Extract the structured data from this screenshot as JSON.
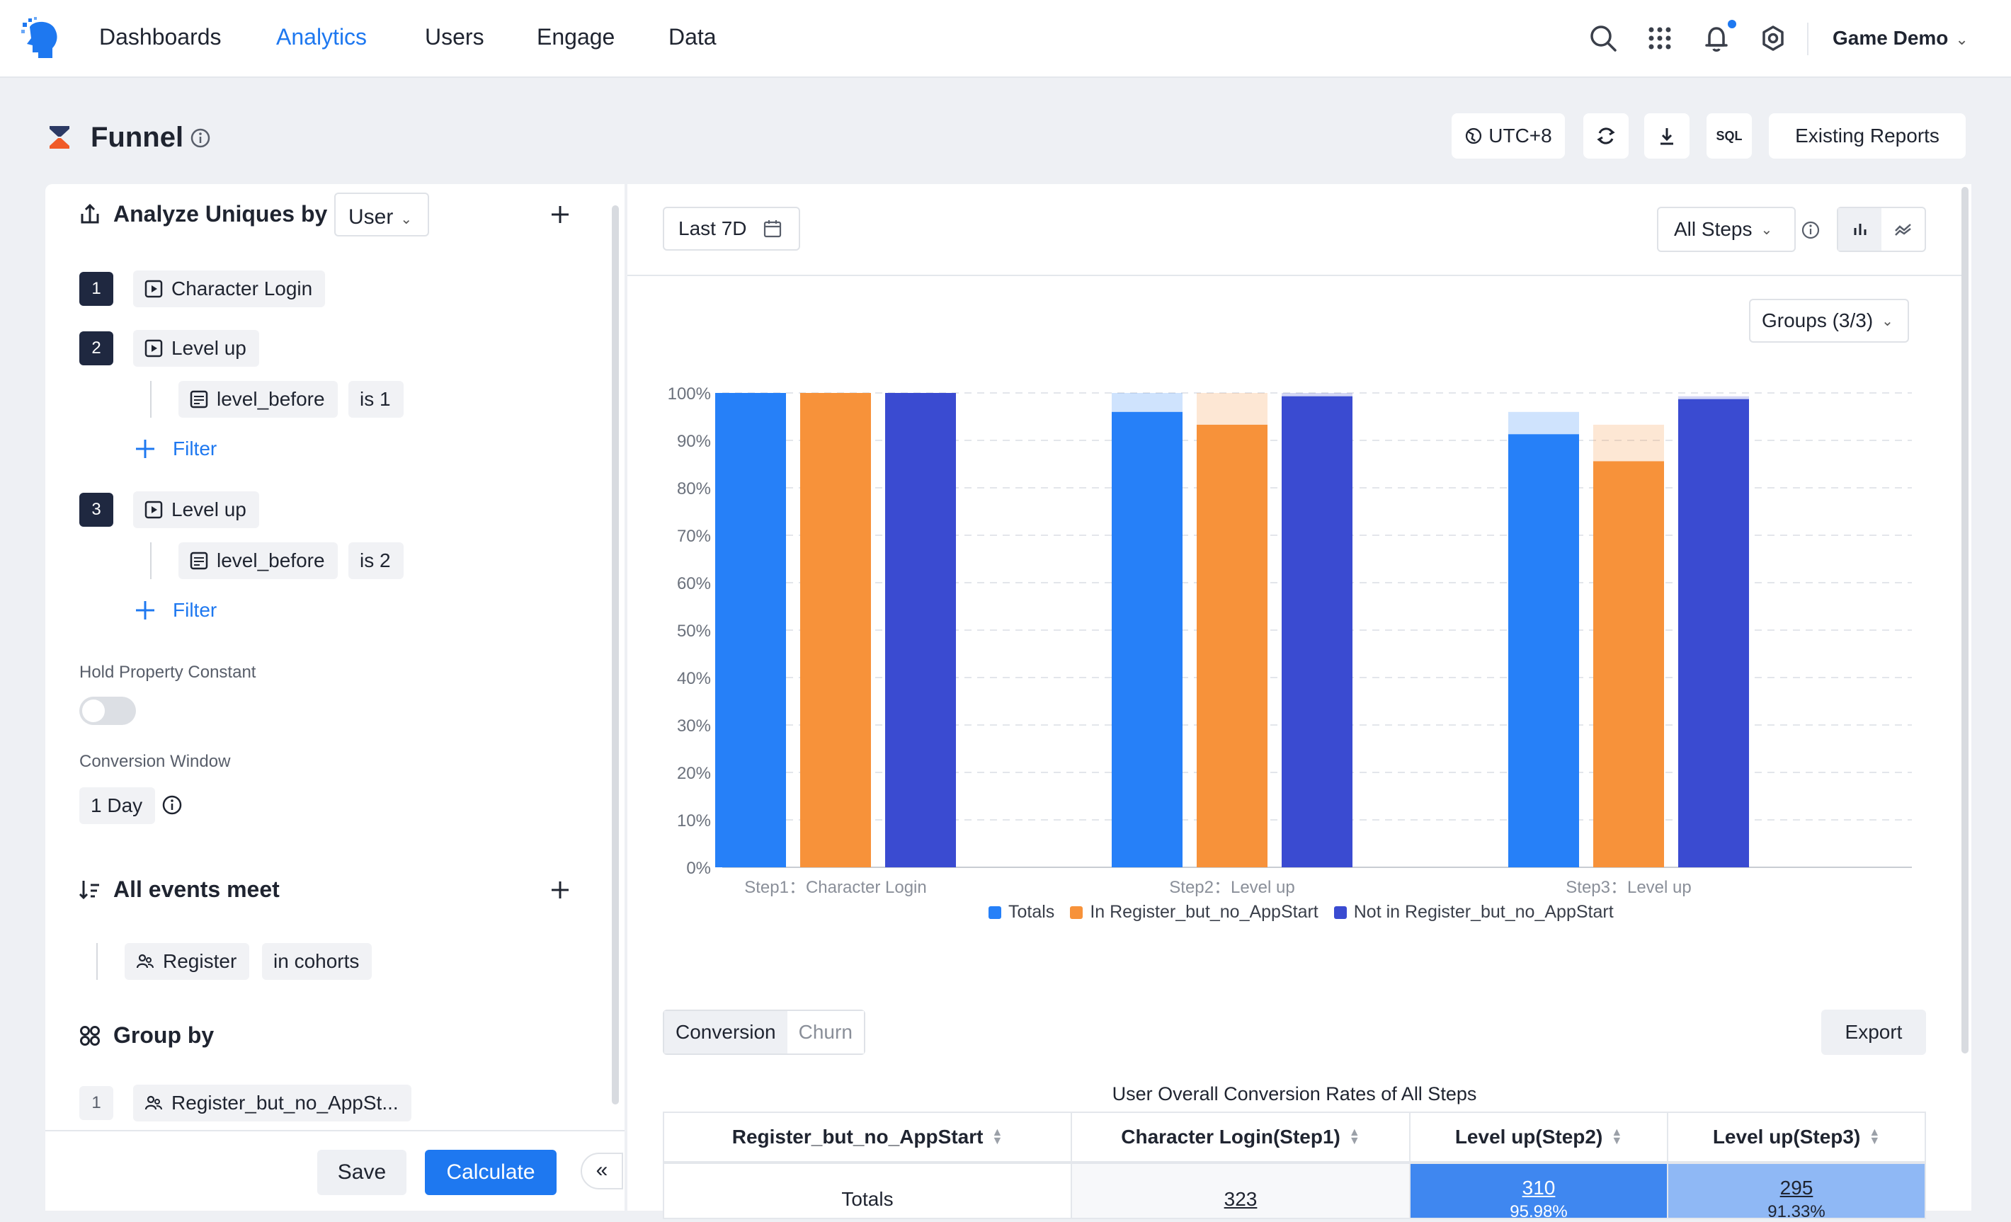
{
  "nav": {
    "items": [
      "Dashboards",
      "Analytics",
      "Users",
      "Engage",
      "Data"
    ],
    "active": "Analytics",
    "project": "Game Demo"
  },
  "page": {
    "title": "Funnel",
    "timezone": "UTC+8",
    "existing_reports": "Existing Reports",
    "sql_label": "SQL"
  },
  "left": {
    "analyze_title": "Analyze Uniques by",
    "analyze_value": "User",
    "steps": [
      {
        "num": "1",
        "event": "Character Login"
      },
      {
        "num": "2",
        "event": "Level up",
        "filter_prop": "level_before",
        "filter_op": "is 1"
      },
      {
        "num": "3",
        "event": "Level up",
        "filter_prop": "level_before",
        "filter_op": "is 2"
      }
    ],
    "filter_label": "Filter",
    "hold_label": "Hold Property Constant",
    "window_label": "Conversion Window",
    "window_value": "1 Day",
    "all_events_title": "All events meet",
    "cohort_name": "Register",
    "cohort_op": "in cohorts",
    "group_title": "Group by",
    "group_idx": "1",
    "group_value": "Register_but_no_AppSt...",
    "save": "Save",
    "calculate": "Calculate",
    "collapse": "«"
  },
  "right": {
    "date_range": "Last 7D",
    "steps_select": "All Steps",
    "groups": "Groups (3/3)",
    "tab_conversion": "Conversion",
    "tab_churn": "Churn",
    "export": "Export",
    "table_title": "User Overall Conversion Rates of All Steps",
    "columns": [
      "Register_but_no_AppStart",
      "Character Login(Step1)",
      "Level up(Step2)",
      "Level up(Step3)"
    ],
    "rows": [
      {
        "label": "Totals",
        "step1": "323",
        "step2": "310",
        "step2_pct": "95.98%",
        "step3": "295",
        "step3_pct": "91.33%"
      }
    ]
  },
  "chart_data": {
    "type": "bar",
    "categories": [
      "Step1：Character Login",
      "Step2：Level up",
      "Step3：Level up"
    ],
    "series": [
      {
        "name": "Totals",
        "color": "#2680f8",
        "values": [
          100,
          96,
          91.3
        ],
        "ghost": [
          100,
          100,
          96
        ]
      },
      {
        "name": "In Register_but_no_AppStart",
        "color": "#f7923a",
        "values": [
          100,
          93.3,
          85.6
        ],
        "ghost": [
          100,
          100,
          93.3
        ]
      },
      {
        "name": "Not in Register_but_no_AppStart",
        "color": "#3a4bd1",
        "values": [
          100,
          99.3,
          98.7
        ],
        "ghost": [
          100,
          100,
          99.3
        ]
      }
    ],
    "yticks": [
      "0%",
      "10%",
      "20%",
      "30%",
      "40%",
      "50%",
      "60%",
      "70%",
      "80%",
      "90%",
      "100%"
    ],
    "ylim": [
      0,
      100
    ],
    "grid": true,
    "legend": "bottom"
  }
}
